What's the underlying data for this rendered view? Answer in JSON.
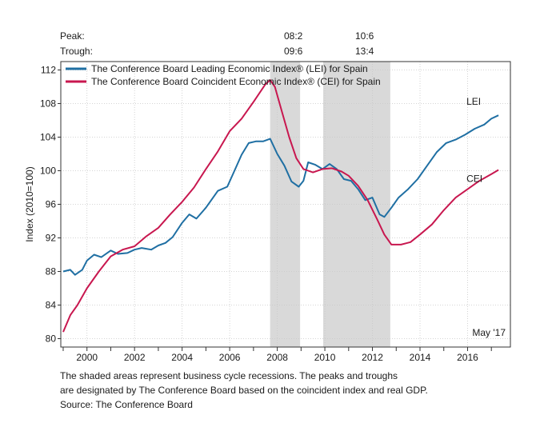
{
  "header": {
    "peak_label": "Peak:",
    "trough_label": "Trough:",
    "peaks": [
      "08:2",
      "10:6"
    ],
    "troughs": [
      "09:6",
      "13:4"
    ]
  },
  "notes": {
    "line1": "The shaded areas represent business cycle recessions. The peaks and troughs",
    "line2": "are designated by The Conference Board based on the coincident index and real GDP.",
    "source": "Source: The Conference Board"
  },
  "chart_data": {
    "type": "line",
    "ylabel": "Index (2010=100)",
    "xlabel": "",
    "xlim": [
      1998.9,
      2017.8
    ],
    "ylim": [
      79,
      113
    ],
    "yticks": [
      80,
      84,
      88,
      92,
      96,
      100,
      104,
      108,
      112
    ],
    "xticks": [
      2000,
      2002,
      2004,
      2006,
      2008,
      2010,
      2012,
      2014,
      2016
    ],
    "date_annotation": "May '17",
    "grid": true,
    "legend_position": "top-left",
    "recessions": [
      {
        "start": 2007.7,
        "end": 2008.96
      },
      {
        "start": 2009.93,
        "end": 2012.75
      }
    ],
    "series": [
      {
        "name": "The Conference Board Leading Economic Index® (LEI) for Spain",
        "end_label": "LEI",
        "color": "#1f6fa3",
        "points": [
          [
            1999.0,
            88.0
          ],
          [
            1999.3,
            88.2
          ],
          [
            1999.5,
            87.6
          ],
          [
            1999.8,
            88.2
          ],
          [
            2000.0,
            89.3
          ],
          [
            2000.3,
            90.0
          ],
          [
            2000.6,
            89.7
          ],
          [
            2001.0,
            90.5
          ],
          [
            2001.3,
            90.1
          ],
          [
            2001.7,
            90.2
          ],
          [
            2002.0,
            90.6
          ],
          [
            2002.3,
            90.8
          ],
          [
            2002.7,
            90.6
          ],
          [
            2003.0,
            91.1
          ],
          [
            2003.3,
            91.4
          ],
          [
            2003.6,
            92.1
          ],
          [
            2004.0,
            93.8
          ],
          [
            2004.3,
            94.8
          ],
          [
            2004.6,
            94.3
          ],
          [
            2005.0,
            95.6
          ],
          [
            2005.5,
            97.6
          ],
          [
            2005.9,
            98.1
          ],
          [
            2006.2,
            100.0
          ],
          [
            2006.5,
            101.9
          ],
          [
            2006.8,
            103.3
          ],
          [
            2007.1,
            103.5
          ],
          [
            2007.4,
            103.5
          ],
          [
            2007.7,
            103.8
          ],
          [
            2008.0,
            102.0
          ],
          [
            2008.3,
            100.6
          ],
          [
            2008.6,
            98.7
          ],
          [
            2008.9,
            98.1
          ],
          [
            2009.1,
            98.8
          ],
          [
            2009.3,
            101.0
          ],
          [
            2009.6,
            100.7
          ],
          [
            2009.9,
            100.2
          ],
          [
            2010.2,
            100.8
          ],
          [
            2010.5,
            100.2
          ],
          [
            2010.8,
            99.0
          ],
          [
            2011.1,
            98.8
          ],
          [
            2011.4,
            97.8
          ],
          [
            2011.7,
            96.5
          ],
          [
            2012.0,
            96.8
          ],
          [
            2012.3,
            94.8
          ],
          [
            2012.5,
            94.5
          ],
          [
            2012.8,
            95.6
          ],
          [
            2013.1,
            96.8
          ],
          [
            2013.5,
            97.8
          ],
          [
            2013.9,
            99.0
          ],
          [
            2014.3,
            100.6
          ],
          [
            2014.7,
            102.2
          ],
          [
            2015.1,
            103.3
          ],
          [
            2015.5,
            103.7
          ],
          [
            2015.9,
            104.3
          ],
          [
            2016.3,
            105.0
          ],
          [
            2016.7,
            105.5
          ],
          [
            2017.0,
            106.2
          ],
          [
            2017.3,
            106.6
          ]
        ]
      },
      {
        "name": "The Conference Board Coincident Economic Index® (CEI) for Spain",
        "end_label": "CEI",
        "color": "#c8174f",
        "points": [
          [
            1999.0,
            80.8
          ],
          [
            1999.3,
            82.8
          ],
          [
            1999.6,
            84.0
          ],
          [
            2000.0,
            86.0
          ],
          [
            2000.5,
            88.0
          ],
          [
            2001.0,
            89.8
          ],
          [
            2001.5,
            90.6
          ],
          [
            2002.0,
            91.0
          ],
          [
            2002.5,
            92.2
          ],
          [
            2003.0,
            93.2
          ],
          [
            2003.5,
            94.8
          ],
          [
            2004.0,
            96.3
          ],
          [
            2004.5,
            98.0
          ],
          [
            2005.0,
            100.2
          ],
          [
            2005.5,
            102.3
          ],
          [
            2006.0,
            104.7
          ],
          [
            2006.5,
            106.2
          ],
          [
            2007.0,
            108.2
          ],
          [
            2007.5,
            110.3
          ],
          [
            2007.7,
            110.8
          ],
          [
            2007.9,
            110.0
          ],
          [
            2008.2,
            107.0
          ],
          [
            2008.5,
            104.0
          ],
          [
            2008.8,
            101.5
          ],
          [
            2009.1,
            100.2
          ],
          [
            2009.5,
            99.8
          ],
          [
            2009.9,
            100.2
          ],
          [
            2010.3,
            100.3
          ],
          [
            2010.7,
            99.9
          ],
          [
            2011.0,
            99.4
          ],
          [
            2011.4,
            98.2
          ],
          [
            2011.8,
            96.5
          ],
          [
            2012.2,
            94.2
          ],
          [
            2012.5,
            92.4
          ],
          [
            2012.8,
            91.2
          ],
          [
            2013.2,
            91.2
          ],
          [
            2013.6,
            91.5
          ],
          [
            2014.0,
            92.4
          ],
          [
            2014.5,
            93.6
          ],
          [
            2015.0,
            95.3
          ],
          [
            2015.5,
            96.8
          ],
          [
            2016.0,
            97.8
          ],
          [
            2016.5,
            98.8
          ],
          [
            2017.0,
            99.6
          ],
          [
            2017.3,
            100.1
          ]
        ]
      }
    ]
  }
}
